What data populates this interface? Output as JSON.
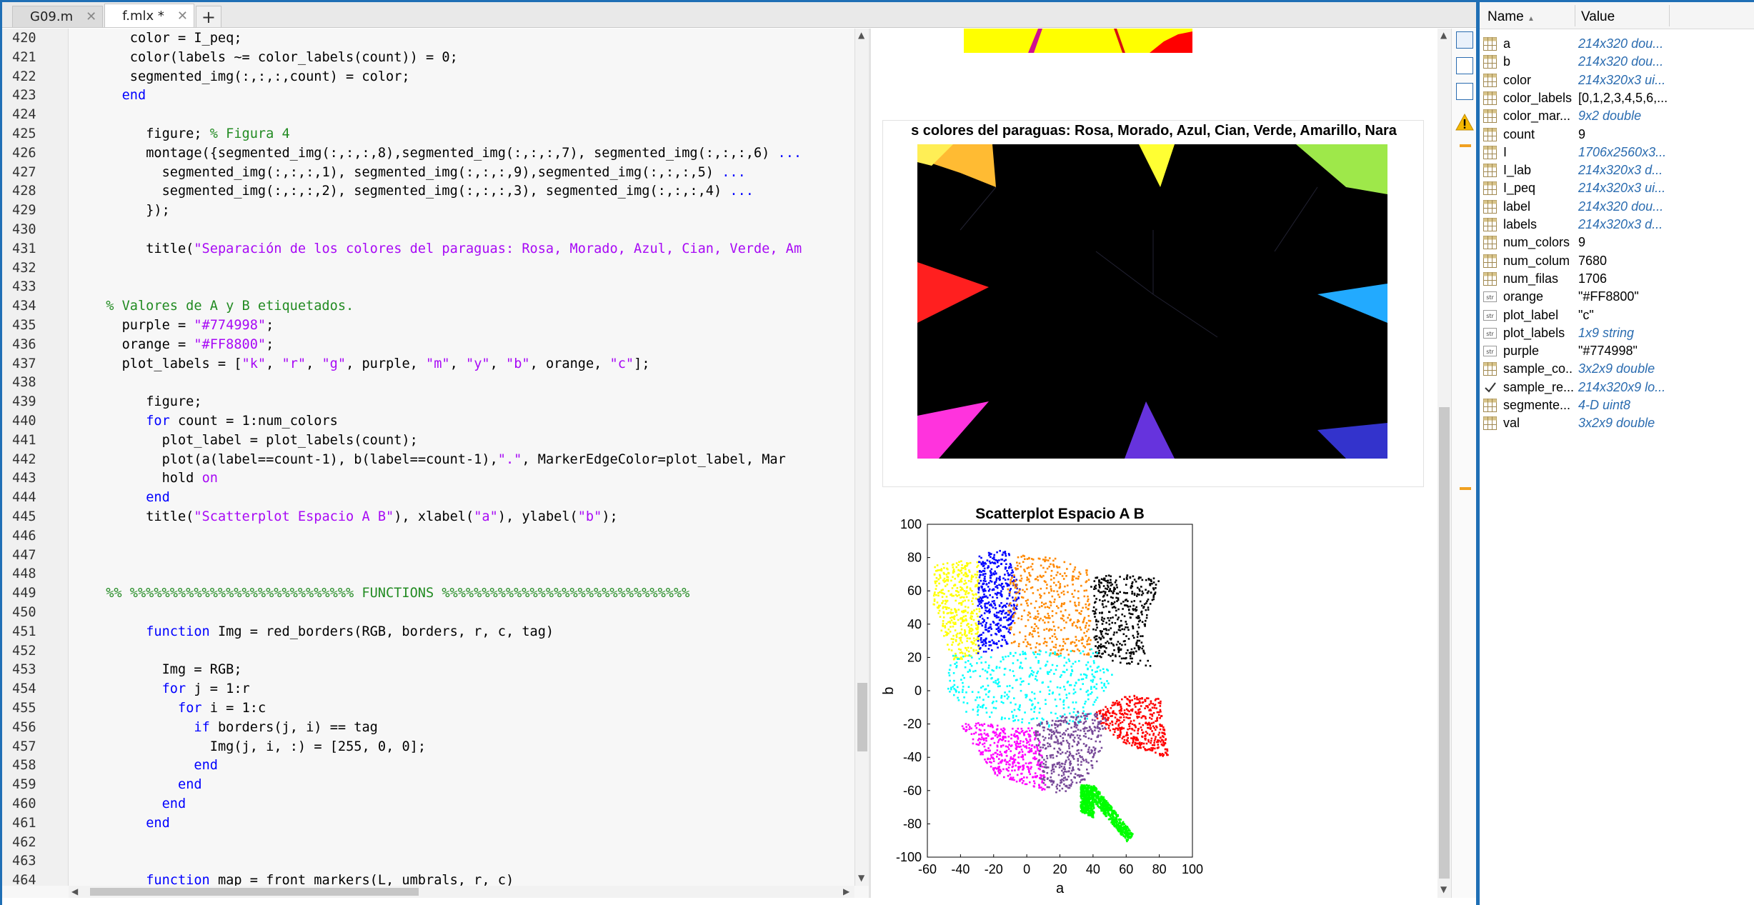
{
  "tabs": [
    {
      "label": "G09.m",
      "active": false
    },
    {
      "label": "f.mlx *",
      "active": true
    }
  ],
  "editor": {
    "lines": [
      {
        "n": "420",
        "indent": 4,
        "parts": [
          [
            "tx",
            "color = I_peq;"
          ]
        ]
      },
      {
        "n": "421",
        "indent": 4,
        "parts": [
          [
            "tx",
            "color(labels ~= color_labels(count)) = 0;"
          ]
        ]
      },
      {
        "n": "422",
        "indent": 4,
        "parts": [
          [
            "tx",
            "segmented_img(:,:,:,count) = color;"
          ]
        ]
      },
      {
        "n": "423",
        "indent": 3,
        "parts": [
          [
            "kw",
            "end"
          ]
        ]
      },
      {
        "n": "424",
        "indent": 0,
        "parts": []
      },
      {
        "n": "425",
        "indent": 6,
        "parts": [
          [
            "tx",
            "figure; "
          ],
          [
            "cm",
            "% Figura 4"
          ]
        ]
      },
      {
        "n": "426",
        "indent": 6,
        "parts": [
          [
            "tx",
            "montage({segmented_img(:,:,:,8),segmented_img(:,:,:,7), segmented_img(:,:,:,6) "
          ],
          [
            "kw",
            "..."
          ]
        ]
      },
      {
        "n": "427",
        "indent": 8,
        "parts": [
          [
            "tx",
            "segmented_img(:,:,:,1), segmented_img(:,:,:,9),segmented_img(:,:,:,5) "
          ],
          [
            "kw",
            "..."
          ]
        ]
      },
      {
        "n": "428",
        "indent": 8,
        "parts": [
          [
            "tx",
            "segmented_img(:,:,:,2), segmented_img(:,:,:,3), segmented_img(:,:,:,4) "
          ],
          [
            "kw",
            "..."
          ]
        ]
      },
      {
        "n": "429",
        "indent": 6,
        "parts": [
          [
            "tx",
            "});"
          ]
        ]
      },
      {
        "n": "430",
        "indent": 0,
        "parts": []
      },
      {
        "n": "431",
        "indent": 6,
        "parts": [
          [
            "tx",
            "title("
          ],
          [
            "str",
            "\"Separación de los colores del paraguas: Rosa, Morado, Azul, Cian, Verde, Am"
          ]
        ]
      },
      {
        "n": "432",
        "indent": 0,
        "parts": []
      },
      {
        "n": "433",
        "indent": 0,
        "parts": []
      },
      {
        "n": "434",
        "indent": 1,
        "parts": [
          [
            "cm",
            "% Valores de A y B etiquetados."
          ]
        ]
      },
      {
        "n": "435",
        "indent": 3,
        "parts": [
          [
            "tx",
            "purple = "
          ],
          [
            "str",
            "\"#774998\""
          ],
          [
            "tx",
            ";"
          ]
        ]
      },
      {
        "n": "436",
        "indent": 3,
        "parts": [
          [
            "tx",
            "orange = "
          ],
          [
            "str",
            "\"#FF8800\""
          ],
          [
            "tx",
            ";"
          ]
        ]
      },
      {
        "n": "437",
        "indent": 3,
        "parts": [
          [
            "tx",
            "plot_labels = ["
          ],
          [
            "str",
            "\"k\""
          ],
          [
            "tx",
            ", "
          ],
          [
            "str",
            "\"r\""
          ],
          [
            "tx",
            ", "
          ],
          [
            "str",
            "\"g\""
          ],
          [
            "tx",
            ", purple, "
          ],
          [
            "str",
            "\"m\""
          ],
          [
            "tx",
            ", "
          ],
          [
            "str",
            "\"y\""
          ],
          [
            "tx",
            ", "
          ],
          [
            "str",
            "\"b\""
          ],
          [
            "tx",
            ", orange, "
          ],
          [
            "str",
            "\"c\""
          ],
          [
            "tx",
            "];"
          ]
        ]
      },
      {
        "n": "438",
        "indent": 0,
        "parts": []
      },
      {
        "n": "439",
        "indent": 6,
        "parts": [
          [
            "tx",
            "figure;"
          ]
        ]
      },
      {
        "n": "440",
        "indent": 6,
        "parts": [
          [
            "kw",
            "for"
          ],
          [
            "tx",
            " count = 1:num_colors"
          ]
        ]
      },
      {
        "n": "441",
        "indent": 8,
        "parts": [
          [
            "tx",
            "plot_label = plot_labels(count);"
          ]
        ]
      },
      {
        "n": "442",
        "indent": 8,
        "parts": [
          [
            "tx",
            "plot(a(label==count-1), b(label==count-1),"
          ],
          [
            "str",
            "\".\""
          ],
          [
            "tx",
            ", MarkerEdgeColor=plot_label, Mar"
          ]
        ]
      },
      {
        "n": "443",
        "indent": 8,
        "parts": [
          [
            "tx",
            "hold "
          ],
          [
            "str",
            "on"
          ]
        ]
      },
      {
        "n": "444",
        "indent": 6,
        "parts": [
          [
            "kw",
            "end"
          ]
        ]
      },
      {
        "n": "445",
        "indent": 6,
        "parts": [
          [
            "tx",
            "title("
          ],
          [
            "str",
            "\"Scatterplot Espacio A B\""
          ],
          [
            "tx",
            "), xlabel("
          ],
          [
            "str",
            "\"a\""
          ],
          [
            "tx",
            "), ylabel("
          ],
          [
            "str",
            "\"b\""
          ],
          [
            "tx",
            ");"
          ]
        ]
      },
      {
        "n": "446",
        "indent": 0,
        "parts": []
      },
      {
        "n": "447",
        "indent": 0,
        "parts": []
      },
      {
        "n": "448",
        "indent": 0,
        "parts": []
      },
      {
        "n": "449",
        "indent": 1,
        "parts": [
          [
            "cm",
            "%% %%%%%%%%%%%%%%%%%%%%%%%%%%%% FUNCTIONS %%%%%%%%%%%%%%%%%%%%%%%%%%%%%%%"
          ]
        ]
      },
      {
        "n": "450",
        "indent": 0,
        "parts": []
      },
      {
        "n": "451",
        "indent": 6,
        "parts": [
          [
            "kw",
            "function"
          ],
          [
            "tx",
            " Img = red_borders(RGB, borders, r, c, tag)"
          ]
        ]
      },
      {
        "n": "452",
        "indent": 0,
        "parts": []
      },
      {
        "n": "453",
        "indent": 8,
        "parts": [
          [
            "tx",
            "Img = RGB;"
          ]
        ]
      },
      {
        "n": "454",
        "indent": 8,
        "parts": [
          [
            "kw",
            "for"
          ],
          [
            "tx",
            " j = 1:r"
          ]
        ]
      },
      {
        "n": "455",
        "indent": 10,
        "parts": [
          [
            "kw",
            "for"
          ],
          [
            "tx",
            " i = 1:c"
          ]
        ]
      },
      {
        "n": "456",
        "indent": 12,
        "parts": [
          [
            "kw",
            "if"
          ],
          [
            "tx",
            " borders(j, i) == tag"
          ]
        ]
      },
      {
        "n": "457",
        "indent": 14,
        "parts": [
          [
            "tx",
            "Img(j, i, :) = [255, 0, 0];"
          ]
        ]
      },
      {
        "n": "458",
        "indent": 12,
        "parts": [
          [
            "kw",
            "end"
          ]
        ]
      },
      {
        "n": "459",
        "indent": 10,
        "parts": [
          [
            "kw",
            "end"
          ]
        ]
      },
      {
        "n": "460",
        "indent": 8,
        "parts": [
          [
            "kw",
            "end"
          ]
        ]
      },
      {
        "n": "461",
        "indent": 6,
        "parts": [
          [
            "kw",
            "end"
          ]
        ]
      },
      {
        "n": "462",
        "indent": 0,
        "parts": []
      },
      {
        "n": "463",
        "indent": 0,
        "parts": []
      },
      {
        "n": "464",
        "indent": 6,
        "parts": [
          [
            "kw",
            "function"
          ],
          [
            "tx",
            " map = front_markers(L, umbrals, r, c)"
          ]
        ]
      }
    ]
  },
  "output": {
    "montage_title": "s colores del paraguas: Rosa, Morado, Azul, Cian, Verde, Amarillo, Nara"
  },
  "chart_data": {
    "type": "scatter",
    "title": "Scatterplot Espacio A B",
    "xlabel": "a",
    "ylabel": "b",
    "xlim": [
      -60,
      100
    ],
    "ylim": [
      -100,
      100
    ],
    "xticks": [
      -60,
      -40,
      -20,
      0,
      20,
      40,
      60,
      80,
      100
    ],
    "yticks": [
      -100,
      -80,
      -60,
      -40,
      -20,
      0,
      20,
      40,
      60,
      80,
      100
    ],
    "series": [
      {
        "color": "#ffff00",
        "region": [
          [
            -57,
            76
          ],
          [
            -30,
            80
          ],
          [
            -28,
            22
          ],
          [
            -45,
            18
          ],
          [
            -57,
            50
          ]
        ]
      },
      {
        "color": "#0000ff",
        "region": [
          [
            -30,
            82
          ],
          [
            -12,
            86
          ],
          [
            -4,
            60
          ],
          [
            -12,
            28
          ],
          [
            -30,
            22
          ]
        ]
      },
      {
        "color": "#ff8800",
        "region": [
          [
            -12,
            62
          ],
          [
            -6,
            82
          ],
          [
            12,
            82
          ],
          [
            38,
            72
          ],
          [
            38,
            22
          ],
          [
            0,
            22
          ],
          [
            -12,
            30
          ]
        ]
      },
      {
        "color": "#000000",
        "region": [
          [
            38,
            70
          ],
          [
            60,
            70
          ],
          [
            80,
            68
          ],
          [
            70,
            30
          ],
          [
            76,
            14
          ],
          [
            40,
            20
          ]
        ]
      },
      {
        "color": "#00ffff",
        "region": [
          [
            -48,
            22
          ],
          [
            40,
            26
          ],
          [
            52,
            10
          ],
          [
            36,
            -18
          ],
          [
            10,
            -22
          ],
          [
            -40,
            -12
          ],
          [
            -48,
            0
          ]
        ]
      },
      {
        "color": "#ff0000",
        "region": [
          [
            40,
            -12
          ],
          [
            60,
            -2
          ],
          [
            80,
            -4
          ],
          [
            85,
            -40
          ],
          [
            60,
            -32
          ],
          [
            45,
            -22
          ]
        ]
      },
      {
        "color": "#ff00ff",
        "region": [
          [
            -40,
            -18
          ],
          [
            6,
            -22
          ],
          [
            12,
            -60
          ],
          [
            -2,
            -56
          ],
          [
            -20,
            -50
          ],
          [
            -40,
            -22
          ]
        ]
      },
      {
        "color": "#774998",
        "region": [
          [
            4,
            -20
          ],
          [
            30,
            -12
          ],
          [
            48,
            -14
          ],
          [
            44,
            -38
          ],
          [
            36,
            -52
          ],
          [
            20,
            -62
          ],
          [
            8,
            -56
          ]
        ]
      },
      {
        "color": "#00ff00",
        "region": [
          [
            32,
            -56
          ],
          [
            40,
            -56
          ],
          [
            40,
            -76
          ],
          [
            32,
            -72
          ]
        ]
      },
      {
        "color": "#00ff00",
        "region": [
          [
            40,
            -56
          ],
          [
            64,
            -86
          ],
          [
            60,
            -90
          ],
          [
            38,
            -64
          ]
        ]
      }
    ]
  },
  "workspace": {
    "header": {
      "name": "Name",
      "value": "Value"
    },
    "rows": [
      {
        "name": "a",
        "value": "214x320 dou...",
        "italic": true,
        "icon": "grid"
      },
      {
        "name": "b",
        "value": "214x320 dou...",
        "italic": true,
        "icon": "grid"
      },
      {
        "name": "color",
        "value": "214x320x3 ui...",
        "italic": true,
        "icon": "grid"
      },
      {
        "name": "color_labels",
        "value": "[0,1,2,3,4,5,6,...",
        "italic": false,
        "icon": "grid"
      },
      {
        "name": "color_mar...",
        "value": "9x2 double",
        "italic": true,
        "icon": "grid"
      },
      {
        "name": "count",
        "value": "9",
        "italic": false,
        "icon": "grid"
      },
      {
        "name": "I",
        "value": "1706x2560x3...",
        "italic": true,
        "icon": "grid"
      },
      {
        "name": "I_lab",
        "value": "214x320x3 d...",
        "italic": true,
        "icon": "grid"
      },
      {
        "name": "I_peq",
        "value": "214x320x3 ui...",
        "italic": true,
        "icon": "grid"
      },
      {
        "name": "label",
        "value": "214x320 dou...",
        "italic": true,
        "icon": "grid"
      },
      {
        "name": "labels",
        "value": "214x320x3 d...",
        "italic": true,
        "icon": "grid"
      },
      {
        "name": "num_colors",
        "value": "9",
        "italic": false,
        "icon": "grid"
      },
      {
        "name": "num_colum",
        "value": "7680",
        "italic": false,
        "icon": "grid"
      },
      {
        "name": "num_filas",
        "value": "1706",
        "italic": false,
        "icon": "grid"
      },
      {
        "name": "orange",
        "value": "\"#FF8800\"",
        "italic": false,
        "icon": "str"
      },
      {
        "name": "plot_label",
        "value": "\"c\"",
        "italic": false,
        "icon": "str"
      },
      {
        "name": "plot_labels",
        "value": "1x9 string",
        "italic": true,
        "icon": "str"
      },
      {
        "name": "purple",
        "value": "\"#774998\"",
        "italic": false,
        "icon": "str"
      },
      {
        "name": "sample_co...",
        "value": "3x2x9 double",
        "italic": true,
        "icon": "grid"
      },
      {
        "name": "sample_re...",
        "value": "214x320x9 lo...",
        "italic": true,
        "icon": "check"
      },
      {
        "name": "segmente...",
        "value": "4-D uint8",
        "italic": true,
        "icon": "grid"
      },
      {
        "name": "val",
        "value": "3x2x9 double",
        "italic": true,
        "icon": "grid"
      }
    ]
  },
  "colors": {
    "keyword": "#0000ff",
    "string": "#a709f5",
    "comment": "#228b22",
    "accent": "#1f6fb5"
  }
}
